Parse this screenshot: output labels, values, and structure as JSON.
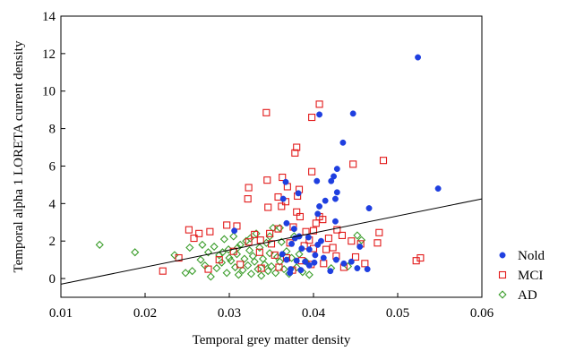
{
  "chart_data": {
    "type": "scatter",
    "title": "",
    "xlabel": "Temporal grey matter density",
    "ylabel": "Temporal alpha 1 LORETA current density",
    "xlim": [
      0.01,
      0.06
    ],
    "ylim": [
      -1,
      14
    ],
    "x_ticks": [
      "0.01",
      "0.02",
      "0.03",
      "0.04",
      "0.05",
      "0.06"
    ],
    "y_ticks": [
      "0",
      "2",
      "4",
      "6",
      "8",
      "10",
      "12",
      "14"
    ],
    "grid": false,
    "legend_position": "right",
    "regression_line": {
      "x": [
        0.01,
        0.06
      ],
      "y": [
        -0.3,
        4.25
      ],
      "color": "#000000"
    },
    "series": [
      {
        "name": "Nold",
        "marker": "filled-circle",
        "color": "#1f3fe0",
        "points": [
          [
            0.0524,
            11.8
          ],
          [
            0.0548,
            4.8
          ],
          [
            0.0407,
            8.75
          ],
          [
            0.0447,
            8.8
          ],
          [
            0.0435,
            7.25
          ],
          [
            0.0428,
            5.85
          ],
          [
            0.0424,
            5.45
          ],
          [
            0.0421,
            5.2
          ],
          [
            0.0404,
            5.2
          ],
          [
            0.0367,
            5.15
          ],
          [
            0.0382,
            4.55
          ],
          [
            0.0428,
            4.6
          ],
          [
            0.0426,
            4.25
          ],
          [
            0.0414,
            4.15
          ],
          [
            0.0364,
            4.25
          ],
          [
            0.0407,
            3.85
          ],
          [
            0.0405,
            3.45
          ],
          [
            0.0466,
            3.75
          ],
          [
            0.0426,
            3.05
          ],
          [
            0.0368,
            2.95
          ],
          [
            0.0377,
            2.65
          ],
          [
            0.0394,
            2.2
          ],
          [
            0.0383,
            2.25
          ],
          [
            0.0378,
            2.15
          ],
          [
            0.0409,
            2.0
          ],
          [
            0.0405,
            1.8
          ],
          [
            0.0374,
            1.85
          ],
          [
            0.0386,
            1.6
          ],
          [
            0.0395,
            1.55
          ],
          [
            0.0363,
            1.3
          ],
          [
            0.0402,
            1.25
          ],
          [
            0.0455,
            1.7
          ],
          [
            0.0412,
            1.1
          ],
          [
            0.0427,
            1.0
          ],
          [
            0.0436,
            0.8
          ],
          [
            0.0445,
            0.9
          ],
          [
            0.0368,
            1.0
          ],
          [
            0.038,
            0.95
          ],
          [
            0.039,
            0.9
          ],
          [
            0.0401,
            0.85
          ],
          [
            0.0395,
            0.7
          ],
          [
            0.0452,
            0.55
          ],
          [
            0.0464,
            0.5
          ],
          [
            0.0373,
            0.5
          ],
          [
            0.0385,
            0.45
          ],
          [
            0.0306,
            2.55
          ],
          [
            0.0372,
            0.3
          ],
          [
            0.042,
            0.4
          ]
        ]
      },
      {
        "name": "MCI",
        "marker": "open-square",
        "color": "#e21a1a",
        "points": [
          [
            0.0407,
            9.3
          ],
          [
            0.0398,
            8.6
          ],
          [
            0.0344,
            8.85
          ],
          [
            0.0483,
            6.3
          ],
          [
            0.0447,
            6.1
          ],
          [
            0.038,
            7.0
          ],
          [
            0.0378,
            6.7
          ],
          [
            0.0398,
            5.7
          ],
          [
            0.0363,
            5.4
          ],
          [
            0.0345,
            5.25
          ],
          [
            0.0369,
            4.9
          ],
          [
            0.0383,
            4.75
          ],
          [
            0.0323,
            4.85
          ],
          [
            0.0322,
            4.25
          ],
          [
            0.0381,
            4.4
          ],
          [
            0.0358,
            4.35
          ],
          [
            0.0367,
            4.1
          ],
          [
            0.0362,
            3.85
          ],
          [
            0.0346,
            3.8
          ],
          [
            0.0407,
            3.3
          ],
          [
            0.0411,
            3.15
          ],
          [
            0.038,
            3.55
          ],
          [
            0.0384,
            3.3
          ],
          [
            0.0403,
            2.95
          ],
          [
            0.0376,
            2.75
          ],
          [
            0.0358,
            2.65
          ],
          [
            0.0391,
            2.5
          ],
          [
            0.04,
            2.55
          ],
          [
            0.0428,
            2.6
          ],
          [
            0.0434,
            2.3
          ],
          [
            0.0445,
            2.0
          ],
          [
            0.0478,
            2.45
          ],
          [
            0.0476,
            1.9
          ],
          [
            0.0456,
            1.85
          ],
          [
            0.0423,
            1.65
          ],
          [
            0.0415,
            1.55
          ],
          [
            0.04,
            1.6
          ],
          [
            0.0389,
            1.75
          ],
          [
            0.0372,
            1.9
          ],
          [
            0.035,
            1.85
          ],
          [
            0.0337,
            2.05
          ],
          [
            0.0323,
            1.95
          ],
          [
            0.0297,
            2.85
          ],
          [
            0.0309,
            2.8
          ],
          [
            0.0264,
            2.4
          ],
          [
            0.0252,
            2.6
          ],
          [
            0.0258,
            2.15
          ],
          [
            0.0277,
            2.5
          ],
          [
            0.024,
            1.1
          ],
          [
            0.0221,
            0.4
          ],
          [
            0.0275,
            0.5
          ],
          [
            0.0288,
            1.0
          ],
          [
            0.0305,
            1.45
          ],
          [
            0.0336,
            1.4
          ],
          [
            0.0354,
            1.25
          ],
          [
            0.0368,
            1.1
          ],
          [
            0.0386,
            0.95
          ],
          [
            0.0397,
            0.75
          ],
          [
            0.0412,
            0.8
          ],
          [
            0.0427,
            1.2
          ],
          [
            0.0436,
            0.6
          ],
          [
            0.045,
            1.15
          ],
          [
            0.0461,
            0.8
          ],
          [
            0.0359,
            0.6
          ],
          [
            0.0338,
            0.55
          ],
          [
            0.0313,
            0.75
          ],
          [
            0.0522,
            0.95
          ],
          [
            0.0527,
            1.1
          ],
          [
            0.0395,
            2.05
          ],
          [
            0.0418,
            2.15
          ],
          [
            0.0375,
            0.45
          ],
          [
            0.0348,
            2.4
          ],
          [
            0.033,
            2.35
          ]
        ]
      },
      {
        "name": "AD",
        "marker": "open-diamond",
        "color": "#3a9d2a",
        "points": [
          [
            0.0146,
            1.8
          ],
          [
            0.0188,
            1.4
          ],
          [
            0.0235,
            1.25
          ],
          [
            0.0248,
            0.3
          ],
          [
            0.0253,
            1.65
          ],
          [
            0.0256,
            0.4
          ],
          [
            0.0266,
            1.0
          ],
          [
            0.0271,
            0.7
          ],
          [
            0.0275,
            1.4
          ],
          [
            0.0278,
            0.1
          ],
          [
            0.0282,
            1.7
          ],
          [
            0.0285,
            0.55
          ],
          [
            0.0288,
            1.25
          ],
          [
            0.0291,
            0.85
          ],
          [
            0.0294,
            2.1
          ],
          [
            0.0297,
            0.3
          ],
          [
            0.0299,
            1.55
          ],
          [
            0.0302,
            0.95
          ],
          [
            0.0305,
            2.25
          ],
          [
            0.0307,
            0.6
          ],
          [
            0.0309,
            1.3
          ],
          [
            0.0311,
            0.2
          ],
          [
            0.0313,
            1.8
          ],
          [
            0.0316,
            0.45
          ],
          [
            0.0318,
            1.05
          ],
          [
            0.032,
            2.0
          ],
          [
            0.0322,
            0.7
          ],
          [
            0.0324,
            1.5
          ],
          [
            0.0326,
            0.25
          ],
          [
            0.0328,
            1.2
          ],
          [
            0.033,
            0.9
          ],
          [
            0.0332,
            2.4
          ],
          [
            0.0334,
            0.5
          ],
          [
            0.0336,
            1.65
          ],
          [
            0.0338,
            0.15
          ],
          [
            0.034,
            1.05
          ],
          [
            0.0342,
            0.75
          ],
          [
            0.0344,
            1.9
          ],
          [
            0.0346,
            0.4
          ],
          [
            0.0348,
            1.35
          ],
          [
            0.035,
            0.65
          ],
          [
            0.0352,
            2.7
          ],
          [
            0.0355,
            0.3
          ],
          [
            0.0357,
            1.15
          ],
          [
            0.036,
            0.9
          ],
          [
            0.0362,
            1.95
          ],
          [
            0.0365,
            0.5
          ],
          [
            0.0368,
            1.45
          ],
          [
            0.0371,
            0.25
          ],
          [
            0.0374,
            1.1
          ],
          [
            0.0377,
            2.25
          ],
          [
            0.038,
            0.6
          ],
          [
            0.0383,
            1.3
          ],
          [
            0.0387,
            0.35
          ],
          [
            0.0391,
            0.9
          ],
          [
            0.0395,
            0.2
          ],
          [
            0.03,
            1.1
          ],
          [
            0.0292,
            1.4
          ],
          [
            0.031,
            1.65
          ],
          [
            0.0325,
            2.15
          ],
          [
            0.0348,
            2.25
          ],
          [
            0.036,
            2.7
          ],
          [
            0.0452,
            2.3
          ],
          [
            0.0457,
            2.05
          ],
          [
            0.0441,
            0.65
          ],
          [
            0.0421,
            0.55
          ],
          [
            0.0268,
            1.8
          ]
        ]
      }
    ]
  }
}
